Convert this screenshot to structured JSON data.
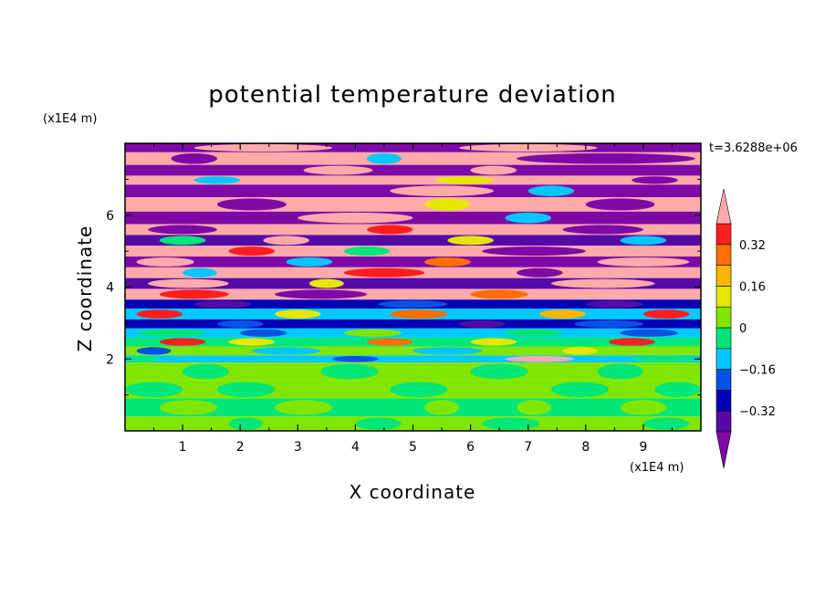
{
  "chart_data": {
    "type": "heatmap",
    "title": "potential temperature deviation",
    "xlabel": "X coordinate",
    "ylabel": "Z coordinate",
    "x_unit": "(x1E4 m)",
    "y_unit": "(x1E4 m)",
    "time_label": "t=3.6288e+06",
    "xlim": [
      0,
      10
    ],
    "ylim": [
      0,
      8
    ],
    "x_ticks": [
      1,
      2,
      3,
      4,
      5,
      6,
      7,
      8,
      9
    ],
    "y_ticks": [
      2,
      4,
      6
    ],
    "colorbar": {
      "levels": [
        -0.48,
        -0.4,
        -0.32,
        -0.24,
        -0.16,
        -0.08,
        0,
        0.08,
        0.16,
        0.24,
        0.32,
        0.4,
        0.48
      ],
      "colors": [
        "#7d0aa6",
        "#550aa8",
        "#0000b4",
        "#0a50e6",
        "#00c8ff",
        "#00e678",
        "#80e600",
        "#e6e600",
        "#ffb400",
        "#ff6e00",
        "#ff1e1e",
        "#ffaaaa"
      ],
      "tick_labels": [
        "0.32",
        "0.16",
        "0",
        "−0.16",
        "−0.32"
      ],
      "tick_values": [
        0.32,
        0.16,
        0,
        -0.16,
        -0.32
      ],
      "extend": "both"
    },
    "rows": [
      {
        "z": [
          7.75,
          8.0
        ],
        "background": "#7d0aa6",
        "features": [
          {
            "x": [
              1.2,
              3.6
            ],
            "color": "#ffaaaa"
          },
          {
            "x": [
              5.8,
              8.2
            ],
            "color": "#ffaaaa"
          }
        ]
      },
      {
        "z": [
          7.4,
          7.75
        ],
        "background": "#ffaaaa",
        "features": [
          {
            "x": [
              0.8,
              1.6
            ],
            "color": "#7d0aa6"
          },
          {
            "x": [
              4.2,
              4.8
            ],
            "color": "#00c8ff"
          },
          {
            "x": [
              6.8,
              9.9
            ],
            "color": "#7d0aa6"
          }
        ]
      },
      {
        "z": [
          7.1,
          7.4
        ],
        "background": "#7d0aa6",
        "features": [
          {
            "x": [
              3.1,
              4.3
            ],
            "color": "#ffaaaa"
          },
          {
            "x": [
              6.0,
              6.8
            ],
            "color": "#ffaaaa"
          }
        ]
      },
      {
        "z": [
          6.85,
          7.1
        ],
        "background": "#ffaaaa",
        "features": [
          {
            "x": [
              1.2,
              2.0
            ],
            "color": "#00c8ff"
          },
          {
            "x": [
              5.4,
              6.4
            ],
            "color": "#e6e600"
          },
          {
            "x": [
              8.8,
              9.6
            ],
            "color": "#7d0aa6"
          }
        ]
      },
      {
        "z": [
          6.5,
          6.85
        ],
        "background": "#7d0aa6",
        "features": [
          {
            "x": [
              4.6,
              6.4
            ],
            "color": "#ffaaaa"
          },
          {
            "x": [
              7.0,
              7.8
            ],
            "color": "#00c8ff"
          }
        ]
      },
      {
        "z": [
          6.1,
          6.5
        ],
        "background": "#ffaaaa",
        "features": [
          {
            "x": [
              1.6,
              2.8
            ],
            "color": "#7d0aa6"
          },
          {
            "x": [
              5.2,
              6.0
            ],
            "color": "#e6e600"
          },
          {
            "x": [
              8.0,
              9.2
            ],
            "color": "#7d0aa6"
          }
        ]
      },
      {
        "z": [
          5.75,
          6.1
        ],
        "background": "#7d0aa6",
        "features": [
          {
            "x": [
              3.0,
              5.0
            ],
            "color": "#ffaaaa"
          },
          {
            "x": [
              6.6,
              7.4
            ],
            "color": "#00c8ff"
          }
        ]
      },
      {
        "z": [
          5.45,
          5.75
        ],
        "background": "#ffaaaa",
        "features": [
          {
            "x": [
              0.4,
              1.6
            ],
            "color": "#7d0aa6"
          },
          {
            "x": [
              4.2,
              5.0
            ],
            "color": "#ff1e1e"
          },
          {
            "x": [
              7.6,
              9.0
            ],
            "color": "#7d0aa6"
          }
        ]
      },
      {
        "z": [
          5.15,
          5.45
        ],
        "background": "#550aa8",
        "features": [
          {
            "x": [
              0.6,
              1.4
            ],
            "color": "#00e678"
          },
          {
            "x": [
              2.4,
              3.2
            ],
            "color": "#ffaaaa"
          },
          {
            "x": [
              5.6,
              6.4
            ],
            "color": "#e6e600"
          },
          {
            "x": [
              8.6,
              9.4
            ],
            "color": "#00c8ff"
          }
        ]
      },
      {
        "z": [
          4.85,
          5.15
        ],
        "background": "#ffaaaa",
        "features": [
          {
            "x": [
              1.8,
              2.6
            ],
            "color": "#ff1e1e"
          },
          {
            "x": [
              3.8,
              4.6
            ],
            "color": "#00e678"
          },
          {
            "x": [
              6.2,
              8.0
            ],
            "color": "#7d0aa6"
          }
        ]
      },
      {
        "z": [
          4.55,
          4.85
        ],
        "background": "#7d0aa6",
        "features": [
          {
            "x": [
              0.2,
              1.2
            ],
            "color": "#ffaaaa"
          },
          {
            "x": [
              2.8,
              3.6
            ],
            "color": "#00c8ff"
          },
          {
            "x": [
              5.2,
              6.0
            ],
            "color": "#ff6e00"
          },
          {
            "x": [
              8.2,
              9.8
            ],
            "color": "#ffaaaa"
          }
        ]
      },
      {
        "z": [
          4.25,
          4.55
        ],
        "background": "#ffaaaa",
        "features": [
          {
            "x": [
              1.0,
              1.6
            ],
            "color": "#00c8ff"
          },
          {
            "x": [
              3.8,
              5.2
            ],
            "color": "#ff1e1e"
          },
          {
            "x": [
              6.8,
              7.6
            ],
            "color": "#7d0aa6"
          }
        ]
      },
      {
        "z": [
          3.95,
          4.25
        ],
        "background": "#550aa8",
        "features": [
          {
            "x": [
              0.4,
              1.8
            ],
            "color": "#ffaaaa"
          },
          {
            "x": [
              3.2,
              3.8
            ],
            "color": "#e6e600"
          },
          {
            "x": [
              7.4,
              9.2
            ],
            "color": "#ffaaaa"
          }
        ]
      },
      {
        "z": [
          3.65,
          3.95
        ],
        "background": "#ffaaaa",
        "features": [
          {
            "x": [
              0.6,
              1.8
            ],
            "color": "#ff1e1e"
          },
          {
            "x": [
              2.6,
              4.2
            ],
            "color": "#7d0aa6"
          },
          {
            "x": [
              6.0,
              7.0
            ],
            "color": "#ff6e00"
          }
        ]
      },
      {
        "z": [
          3.4,
          3.65
        ],
        "background": "#0000b4",
        "features": [
          {
            "x": [
              1.2,
              2.2
            ],
            "color": "#550aa8"
          },
          {
            "x": [
              4.4,
              5.6
            ],
            "color": "#0a50e6"
          },
          {
            "x": [
              8.0,
              9.0
            ],
            "color": "#550aa8"
          }
        ]
      },
      {
        "z": [
          3.1,
          3.4
        ],
        "background": "#00c8ff",
        "features": [
          {
            "x": [
              0.2,
              1.0
            ],
            "color": "#ff1e1e"
          },
          {
            "x": [
              2.6,
              3.4
            ],
            "color": "#e6e600"
          },
          {
            "x": [
              4.6,
              5.6
            ],
            "color": "#ff6e00"
          },
          {
            "x": [
              7.2,
              8.0
            ],
            "color": "#ffb400"
          },
          {
            "x": [
              9.0,
              9.8
            ],
            "color": "#ff1e1e"
          }
        ]
      },
      {
        "z": [
          2.85,
          3.1
        ],
        "background": "#0000b4",
        "features": [
          {
            "x": [
              1.6,
              2.4
            ],
            "color": "#0a50e6"
          },
          {
            "x": [
              5.8,
              6.6
            ],
            "color": "#550aa8"
          },
          {
            "x": [
              7.8,
              9.0
            ],
            "color": "#0a50e6"
          }
        ]
      },
      {
        "z": [
          2.6,
          2.85
        ],
        "background": "#00c8ff",
        "features": [
          {
            "x": [
              0.2,
              1.4
            ],
            "color": "#00e678"
          },
          {
            "x": [
              2.0,
              2.8
            ],
            "color": "#0a50e6"
          },
          {
            "x": [
              3.8,
              4.8
            ],
            "color": "#80e600"
          },
          {
            "x": [
              6.6,
              7.6
            ],
            "color": "#00e678"
          },
          {
            "x": [
              8.6,
              9.6
            ],
            "color": "#0a50e6"
          }
        ]
      },
      {
        "z": [
          2.35,
          2.6
        ],
        "background": "#00e678",
        "features": [
          {
            "x": [
              0.6,
              1.4
            ],
            "color": "#ff1e1e"
          },
          {
            "x": [
              1.8,
              2.6
            ],
            "color": "#e6e600"
          },
          {
            "x": [
              4.2,
              5.0
            ],
            "color": "#ff6e00"
          },
          {
            "x": [
              6.0,
              6.8
            ],
            "color": "#e6e600"
          },
          {
            "x": [
              8.4,
              9.2
            ],
            "color": "#ff1e1e"
          }
        ]
      },
      {
        "z": [
          2.1,
          2.35
        ],
        "background": "#80e600",
        "features": [
          {
            "x": [
              0.2,
              0.8
            ],
            "color": "#0a50e6"
          },
          {
            "x": [
              2.2,
              3.4
            ],
            "color": "#00c8ff"
          },
          {
            "x": [
              5.0,
              6.2
            ],
            "color": "#00c8ff"
          },
          {
            "x": [
              7.6,
              8.2
            ],
            "color": "#e6e600"
          }
        ]
      },
      {
        "z": [
          1.9,
          2.1
        ],
        "background": "#00c8ff",
        "features": [
          {
            "x": [
              0.0,
              0.6
            ],
            "color": "#00e678"
          },
          {
            "x": [
              3.6,
              4.4
            ],
            "color": "#0a50e6"
          },
          {
            "x": [
              6.6,
              7.8
            ],
            "color": "#ffaaaa"
          },
          {
            "x": [
              8.8,
              10.0
            ],
            "color": "#00e678"
          }
        ]
      },
      {
        "z": [
          1.4,
          1.9
        ],
        "background": "#80e600",
        "features": [
          {
            "x": [
              1.0,
              1.8
            ],
            "color": "#00e678"
          },
          {
            "x": [
              3.4,
              4.4
            ],
            "color": "#00e678"
          },
          {
            "x": [
              6.0,
              7.0
            ],
            "color": "#00e678"
          },
          {
            "x": [
              8.2,
              9.0
            ],
            "color": "#00e678"
          }
        ]
      },
      {
        "z": [
          0.9,
          1.4
        ],
        "background": "#80e600",
        "features": [
          {
            "x": [
              0.0,
              1.0
            ],
            "color": "#00e678"
          },
          {
            "x": [
              1.6,
              2.6
            ],
            "color": "#00e678"
          },
          {
            "x": [
              4.6,
              5.6
            ],
            "color": "#00e678"
          },
          {
            "x": [
              7.4,
              8.4
            ],
            "color": "#00e678"
          },
          {
            "x": [
              9.2,
              10.0
            ],
            "color": "#00e678"
          }
        ]
      },
      {
        "z": [
          0.4,
          0.9
        ],
        "background": "#00e678",
        "features": [
          {
            "x": [
              0.6,
              1.6
            ],
            "color": "#80e600"
          },
          {
            "x": [
              2.6,
              3.6
            ],
            "color": "#80e600"
          },
          {
            "x": [
              5.2,
              5.8
            ],
            "color": "#80e600"
          },
          {
            "x": [
              6.8,
              7.4
            ],
            "color": "#80e600"
          },
          {
            "x": [
              8.6,
              9.4
            ],
            "color": "#80e600"
          }
        ]
      },
      {
        "z": [
          0.0,
          0.4
        ],
        "background": "#80e600",
        "features": [
          {
            "x": [
              1.8,
              2.4
            ],
            "color": "#00e678"
          },
          {
            "x": [
              4.0,
              4.8
            ],
            "color": "#00e678"
          },
          {
            "x": [
              6.2,
              7.2
            ],
            "color": "#00e678"
          },
          {
            "x": [
              9.0,
              9.8
            ],
            "color": "#00e678"
          }
        ]
      }
    ]
  }
}
